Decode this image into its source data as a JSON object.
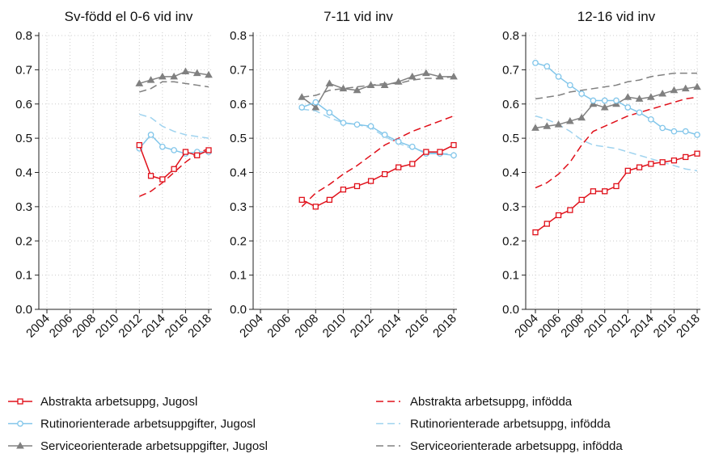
{
  "chart_data": [
    {
      "type": "line",
      "title": "Sv-född el 0-6 vid inv",
      "x": [
        2012,
        2013,
        2014,
        2015,
        2016,
        2017,
        2018
      ],
      "xlim": [
        2004,
        2018
      ],
      "xticks": [
        2004,
        2006,
        2008,
        2010,
        2012,
        2014,
        2016,
        2018
      ],
      "ylim": [
        0,
        0.8
      ],
      "yticks": [
        {
          "value": 0,
          "label": "0.0"
        },
        0.1,
        0.2,
        0.3,
        0.4,
        0.5,
        0.6,
        0.7,
        0.8
      ],
      "grid": true,
      "series": [
        {
          "name": "Abstrakta arbetsuppg, Jugosl",
          "color": "#e0101a",
          "marker": "square",
          "values": [
            0.48,
            0.39,
            0.38,
            0.41,
            0.46,
            0.45,
            0.465
          ]
        },
        {
          "name": "Rutinorienterade arbetsuppgifter, Jugosl",
          "color": "#82c6ea",
          "marker": "circle",
          "values": [
            0.47,
            0.51,
            0.475,
            0.465,
            0.455,
            0.46,
            0.46
          ]
        },
        {
          "name": "Serviceorienterade arbetsuppgifter, Jugosl",
          "color": "#808080",
          "marker": "triangle",
          "values": [
            0.66,
            0.67,
            0.68,
            0.68,
            0.695,
            0.69,
            0.685
          ]
        },
        {
          "name": "Abstrakta arbetsuppg, infödda",
          "color": "#e0101a",
          "dashed": true,
          "values": [
            0.33,
            0.345,
            0.37,
            0.4,
            0.43,
            0.455,
            0.47
          ]
        },
        {
          "name": "Rutinorienterade arbetsuppg, infödda",
          "color": "#9fd3ef",
          "dashed": true,
          "values": [
            0.57,
            0.56,
            0.535,
            0.52,
            0.51,
            0.505,
            0.5
          ]
        },
        {
          "name": "Serviceorienterade arbetsuppg, infödda",
          "color": "#808080",
          "dashed": true,
          "values": [
            0.635,
            0.645,
            0.665,
            0.665,
            0.66,
            0.655,
            0.65
          ]
        }
      ]
    },
    {
      "type": "line",
      "title": "7-11 vid inv",
      "x": [
        2007,
        2008,
        2009,
        2010,
        2011,
        2012,
        2013,
        2014,
        2015,
        2016,
        2017,
        2018
      ],
      "xlim": [
        2004,
        2018
      ],
      "xticks": [
        2004,
        2006,
        2008,
        2010,
        2012,
        2014,
        2016,
        2018
      ],
      "ylim": [
        0,
        0.8
      ],
      "yticks": [
        {
          "value": 0,
          "label": "0.0"
        },
        0.1,
        0.2,
        0.3,
        0.4,
        0.5,
        0.6,
        0.7,
        0.8
      ],
      "grid": true,
      "series": [
        {
          "values": [
            0.32,
            0.3,
            0.32,
            0.35,
            0.36,
            0.375,
            0.395,
            0.415,
            0.425,
            0.46,
            0.46,
            0.48
          ]
        },
        {
          "values": [
            0.59,
            0.605,
            0.575,
            0.545,
            0.54,
            0.535,
            0.51,
            0.49,
            0.475,
            0.455,
            0.455,
            0.45
          ]
        },
        {
          "values": [
            0.62,
            0.59,
            0.66,
            0.645,
            0.64,
            0.655,
            0.655,
            0.665,
            0.68,
            0.69,
            0.68,
            0.68
          ]
        },
        {
          "values": [
            0.3,
            0.34,
            0.365,
            0.395,
            0.42,
            0.45,
            0.48,
            0.5,
            0.52,
            0.535,
            0.55,
            0.565
          ]
        },
        {
          "values": [
            0.585,
            0.58,
            0.56,
            0.545,
            0.54,
            0.53,
            0.505,
            0.485,
            0.47,
            0.46,
            0.455,
            0.455
          ]
        },
        {
          "values": [
            0.62,
            0.625,
            0.64,
            0.645,
            0.65,
            0.655,
            0.66,
            0.66,
            0.67,
            0.675,
            0.675,
            0.68
          ]
        }
      ]
    },
    {
      "type": "line",
      "title": "12-16 vid inv",
      "x": [
        2004,
        2005,
        2006,
        2007,
        2008,
        2009,
        2010,
        2011,
        2012,
        2013,
        2014,
        2015,
        2016,
        2017,
        2018
      ],
      "xlim": [
        2004,
        2018
      ],
      "xticks": [
        2004,
        2006,
        2008,
        2010,
        2012,
        2014,
        2016,
        2018
      ],
      "ylim": [
        0,
        0.8
      ],
      "yticks": [
        {
          "value": 0,
          "label": "0.0"
        },
        0.1,
        0.2,
        0.3,
        0.4,
        0.5,
        0.6,
        0.7,
        0.8
      ],
      "grid": true,
      "series": [
        {
          "values": [
            0.225,
            0.25,
            0.275,
            0.29,
            0.32,
            0.345,
            0.345,
            0.36,
            0.405,
            0.415,
            0.425,
            0.43,
            0.435,
            0.445,
            0.455
          ]
        },
        {
          "values": [
            0.72,
            0.71,
            0.68,
            0.655,
            0.63,
            0.61,
            0.61,
            0.61,
            0.59,
            0.575,
            0.555,
            0.53,
            0.52,
            0.52,
            0.51
          ]
        },
        {
          "values": [
            0.53,
            0.535,
            0.54,
            0.55,
            0.56,
            0.6,
            0.59,
            0.6,
            0.62,
            0.615,
            0.62,
            0.63,
            0.64,
            0.645,
            0.65
          ]
        },
        {
          "values": [
            0.355,
            0.37,
            0.395,
            0.43,
            0.48,
            0.52,
            0.535,
            0.55,
            0.565,
            0.575,
            0.585,
            0.595,
            0.605,
            0.615,
            0.62
          ]
        },
        {
          "values": [
            0.565,
            0.555,
            0.54,
            0.52,
            0.495,
            0.48,
            0.475,
            0.47,
            0.46,
            0.45,
            0.44,
            0.43,
            0.42,
            0.41,
            0.405
          ]
        },
        {
          "values": [
            0.615,
            0.62,
            0.625,
            0.635,
            0.64,
            0.645,
            0.65,
            0.655,
            0.665,
            0.67,
            0.68,
            0.685,
            0.69,
            0.69,
            0.69
          ]
        }
      ]
    }
  ]
}
